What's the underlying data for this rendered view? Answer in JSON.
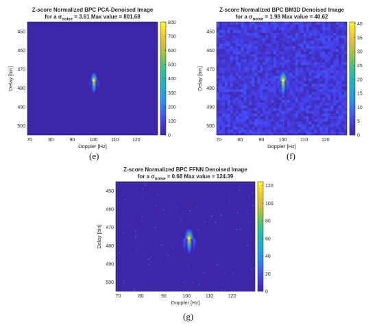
{
  "chart_data": [
    {
      "type": "heatmap",
      "panel": "e",
      "title": "Z-score Normalized BPC PCA-Denoised Image",
      "subtitle_prefix": "for a σ",
      "subtitle_sub": "noise",
      "subtitle_suffix": "= 3.61 Max value = 801.68",
      "xlabel": "Doppler [Hz]",
      "ylabel": "Delay [bin]",
      "xticks": [
        70,
        80,
        90,
        100,
        110,
        120
      ],
      "yticks": [
        450,
        460,
        470,
        480,
        490,
        500
      ],
      "xlim": [
        69,
        130
      ],
      "ylim": [
        445,
        505
      ],
      "colorbar_ticks": [
        0,
        100,
        200,
        300,
        400,
        500,
        600,
        700,
        800
      ],
      "clim": [
        0,
        801.68
      ],
      "peak": {
        "doppler": 100,
        "delay": 476,
        "value": 801.68
      },
      "noise_level": "low",
      "caption": "(e)"
    },
    {
      "type": "heatmap",
      "panel": "f",
      "title": "Z-score Normalized BPC BM3D Denoised Image",
      "subtitle_prefix": "for a σ",
      "subtitle_sub": "noise",
      "subtitle_suffix": "= 1.98 Max value = 40.62",
      "xlabel": "Doppler [Hz]",
      "ylabel": "Delay [bin]",
      "xticks": [
        70,
        80,
        90,
        100,
        110,
        120
      ],
      "yticks": [
        450,
        460,
        470,
        480,
        490,
        500
      ],
      "xlim": [
        69,
        130
      ],
      "ylim": [
        445,
        505
      ],
      "colorbar_ticks": [
        0,
        5,
        10,
        15,
        20,
        25,
        30,
        35,
        40
      ],
      "clim": [
        0,
        40.62
      ],
      "peak": {
        "doppler": 100,
        "delay": 476,
        "value": 40.62
      },
      "noise_level": "mottled",
      "caption": "(f)"
    },
    {
      "type": "heatmap",
      "panel": "g",
      "title": "Z-score Normalized BPC FFNN Denoised Image",
      "subtitle_prefix": "for a σ",
      "subtitle_sub": "noise",
      "subtitle_suffix": "= 0.68 Max value = 124.39",
      "xlabel": "Doppler [Hz]",
      "ylabel": "Delay [bin]",
      "xticks": [
        70,
        80,
        90,
        100,
        110,
        120
      ],
      "yticks": [
        450,
        460,
        470,
        480,
        490,
        500
      ],
      "xlim": [
        69,
        130
      ],
      "ylim": [
        445,
        505
      ],
      "colorbar_ticks": [
        0,
        20,
        40,
        60,
        80,
        100,
        120
      ],
      "clim": [
        0,
        124.39
      ],
      "peak": {
        "doppler": 101,
        "delay": 476,
        "value": 124.39
      },
      "noise_level": "sparse",
      "caption": "(g)"
    }
  ],
  "colors": {
    "background": "#3e26a8",
    "colormap": [
      "#3e26a8",
      "#4743f2",
      "#2d8bf8",
      "#1bafd1",
      "#27c297",
      "#9bc43b",
      "#f8ba3d",
      "#f9fb15"
    ]
  }
}
